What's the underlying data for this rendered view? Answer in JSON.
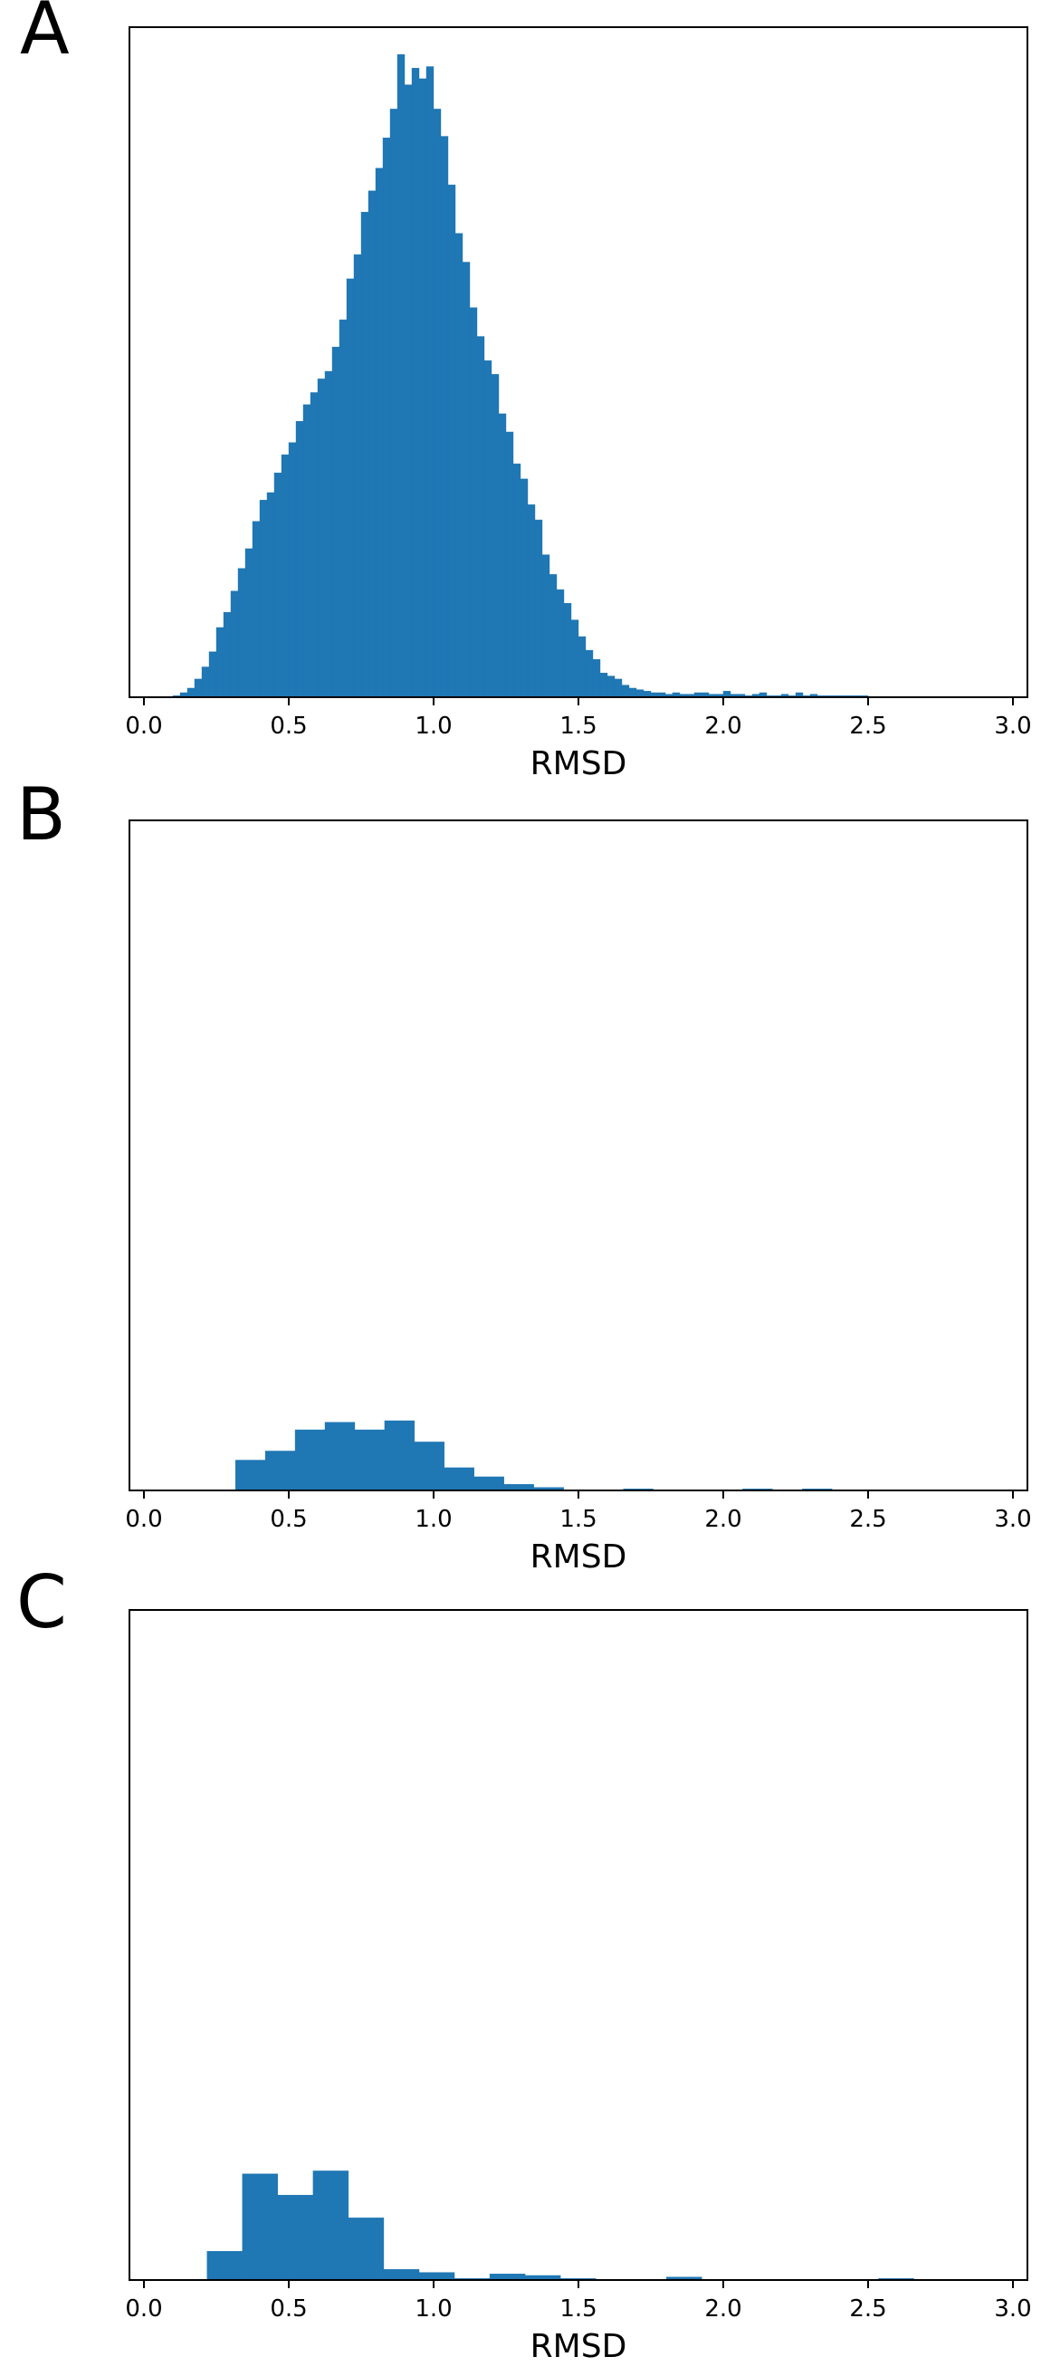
{
  "chart_data": [
    {
      "panel_label": "A",
      "type": "bar",
      "title": "",
      "xlabel": "RMSD",
      "ylabel": "",
      "xlim": [
        -0.05,
        3.05
      ],
      "ylim": [
        0,
        442
      ],
      "xticks": [
        0.0,
        0.5,
        1.0,
        1.5,
        2.0,
        2.5,
        3.0
      ],
      "xtick_labels": [
        "0.0",
        "0.5",
        "1.0",
        "1.5",
        "2.0",
        "2.5",
        "3.0"
      ],
      "yticks_visible": false,
      "grid": false,
      "bar_color": "#1f77b4",
      "bin_width": 0.025,
      "bin_starts": [
        0.1,
        0.125,
        0.15,
        0.175,
        0.2,
        0.225,
        0.25,
        0.275,
        0.3,
        0.325,
        0.35,
        0.375,
        0.4,
        0.425,
        0.45,
        0.475,
        0.5,
        0.525,
        0.55,
        0.575,
        0.6,
        0.625,
        0.65,
        0.675,
        0.7,
        0.725,
        0.75,
        0.775,
        0.8,
        0.825,
        0.85,
        0.875,
        0.9,
        0.925,
        0.95,
        0.975,
        1.0,
        1.025,
        1.05,
        1.075,
        1.1,
        1.125,
        1.15,
        1.175,
        1.2,
        1.225,
        1.25,
        1.275,
        1.3,
        1.325,
        1.35,
        1.375,
        1.4,
        1.425,
        1.45,
        1.475,
        1.5,
        1.525,
        1.55,
        1.575,
        1.6,
        1.625,
        1.65,
        1.675,
        1.7,
        1.725,
        1.75,
        1.775,
        1.8,
        1.825,
        1.85,
        1.875,
        1.9,
        1.925,
        1.95,
        1.975,
        2.0,
        2.025,
        2.05,
        2.075,
        2.1,
        2.125,
        2.15,
        2.175,
        2.2,
        2.225,
        2.25,
        2.275,
        2.3,
        2.325,
        2.35,
        2.375,
        2.4,
        2.425,
        2.45,
        2.475
      ],
      "values": [
        1,
        3,
        6,
        12,
        20,
        30,
        46,
        56,
        70,
        85,
        98,
        116,
        130,
        135,
        148,
        160,
        168,
        182,
        193,
        201,
        210,
        215,
        231,
        249,
        276,
        292,
        320,
        334,
        349,
        369,
        388,
        424,
        404,
        415,
        408,
        416,
        388,
        370,
        338,
        306,
        287,
        257,
        238,
        222,
        213,
        187,
        175,
        154,
        144,
        127,
        117,
        94,
        81,
        71,
        62,
        51,
        40,
        31,
        25,
        16,
        14,
        12,
        8,
        6,
        5,
        4,
        3,
        3,
        2,
        3,
        2,
        2,
        3,
        3,
        2,
        2,
        4,
        2,
        2,
        1,
        2,
        3,
        1,
        1,
        2,
        1,
        3,
        1,
        2,
        1,
        1,
        1,
        1,
        1,
        1,
        1
      ]
    },
    {
      "panel_label": "B",
      "type": "bar",
      "title": "",
      "xlabel": "RMSD",
      "ylabel": "",
      "xlim": [
        -0.05,
        3.05
      ],
      "ylim": [
        0,
        442
      ],
      "xticks": [
        0.0,
        0.5,
        1.0,
        1.5,
        2.0,
        2.5,
        3.0
      ],
      "xtick_labels": [
        "0.0",
        "0.5",
        "1.0",
        "1.5",
        "2.0",
        "2.5",
        "3.0"
      ],
      "yticks_visible": false,
      "grid": false,
      "bar_color": "#1f77b4",
      "bin_width": 0.103,
      "bin_starts": [
        0.316,
        0.419,
        0.522,
        0.625,
        0.728,
        0.831,
        0.934,
        1.037,
        1.14,
        1.243,
        1.346,
        1.655,
        2.067,
        2.273
      ],
      "values": [
        20,
        26,
        40,
        45,
        40,
        46,
        32,
        15,
        9,
        4,
        2,
        1,
        1,
        1
      ]
    },
    {
      "panel_label": "C",
      "type": "bar",
      "title": "",
      "xlabel": "RMSD",
      "ylabel": "",
      "xlim": [
        -0.05,
        3.05
      ],
      "ylim": [
        0,
        442
      ],
      "xticks": [
        0.0,
        0.5,
        1.0,
        1.5,
        2.0,
        2.5,
        3.0
      ],
      "xtick_labels": [
        "0.0",
        "0.5",
        "1.0",
        "1.5",
        "2.0",
        "2.5",
        "3.0"
      ],
      "yticks_visible": false,
      "grid": false,
      "bar_color": "#1f77b4",
      "bin_width": 0.122,
      "bin_starts": [
        0.218,
        0.34,
        0.462,
        0.584,
        0.706,
        0.828,
        0.95,
        1.072,
        1.194,
        1.316,
        1.438,
        1.804,
        2.536
      ],
      "values": [
        19,
        70,
        56,
        72,
        41,
        7,
        5,
        1,
        4,
        3,
        1,
        2,
        1
      ]
    }
  ]
}
